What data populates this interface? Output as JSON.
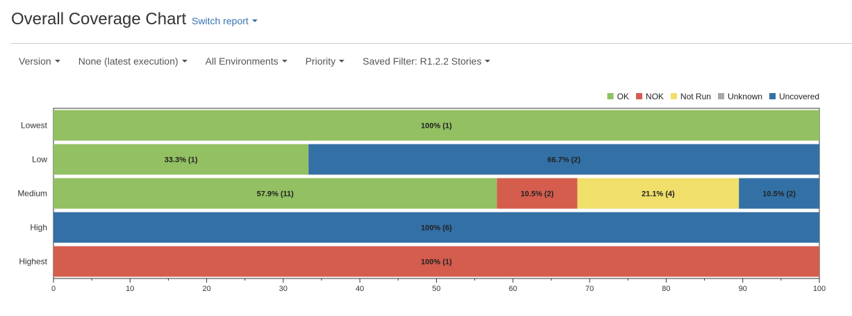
{
  "header": {
    "title": "Overall Coverage Chart",
    "switch_label": "Switch report"
  },
  "filters": [
    {
      "label": "Version"
    },
    {
      "label": "None (latest execution)"
    },
    {
      "label": "All Environments"
    },
    {
      "label": "Priority"
    },
    {
      "label": "Saved Filter: R1.2.2 Stories"
    }
  ],
  "chart_data": {
    "type": "bar",
    "orientation": "horizontal",
    "stacked": true,
    "categories": [
      "Lowest",
      "Low",
      "Medium",
      "High",
      "Highest"
    ],
    "xlim": [
      0,
      100
    ],
    "xticks": [
      0,
      10,
      20,
      30,
      40,
      50,
      60,
      70,
      80,
      90,
      100
    ],
    "legend_position": "top-right",
    "series": [
      {
        "name": "OK",
        "color": "#93c062",
        "values": [
          100,
          33.3,
          57.9,
          0,
          0
        ],
        "counts": [
          1,
          1,
          11,
          0,
          0
        ],
        "labels": [
          "100% (1)",
          "33.3% (1)",
          "57.9% (11)",
          "",
          ""
        ]
      },
      {
        "name": "NOK",
        "color": "#d45d4e",
        "values": [
          0,
          0,
          10.5,
          0,
          100
        ],
        "counts": [
          0,
          0,
          2,
          0,
          1
        ],
        "labels": [
          "",
          "",
          "10.5% (2)",
          "",
          "100% (1)"
        ]
      },
      {
        "name": "Not Run",
        "color": "#f0df6a",
        "values": [
          0,
          0,
          21.1,
          0,
          0
        ],
        "counts": [
          0,
          0,
          4,
          0,
          0
        ],
        "labels": [
          "",
          "",
          "21.1% (4)",
          "",
          ""
        ]
      },
      {
        "name": "Unknown",
        "color": "#a8a8a8",
        "values": [
          0,
          0,
          0,
          0,
          0
        ],
        "counts": [
          0,
          0,
          0,
          0,
          0
        ],
        "labels": [
          "",
          "",
          "",
          "",
          ""
        ]
      },
      {
        "name": "Uncovered",
        "color": "#3370a5",
        "values": [
          0,
          66.7,
          10.5,
          100,
          0
        ],
        "counts": [
          0,
          2,
          2,
          6,
          0
        ],
        "labels": [
          "",
          "66.7% (2)",
          "10.5% (2)",
          "100% (6)",
          ""
        ]
      }
    ]
  }
}
